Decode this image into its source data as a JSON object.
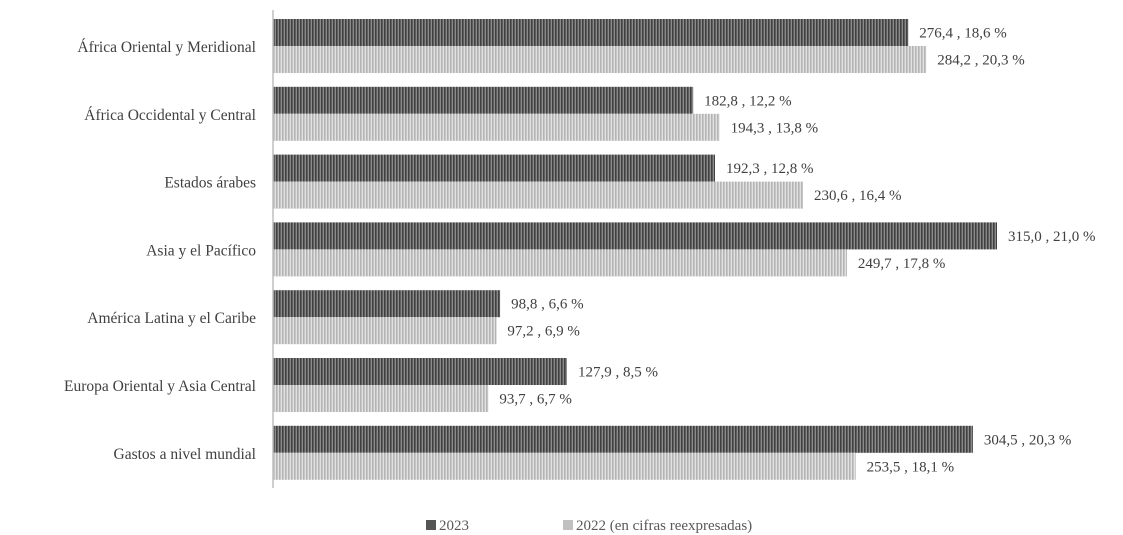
{
  "chart_data": {
    "type": "bar",
    "orientation": "horizontal",
    "categories": [
      "África Oriental y Meridional",
      "África Occidental y Central",
      "Estados árabes",
      "Asia y el Pacífico",
      "América Latina y el Caribe",
      "Europa Oriental y Asia Central",
      "Gastos a nivel mundial"
    ],
    "series": [
      {
        "name": "2023",
        "color": "#6b6b6b",
        "pattern": "vertical-stripes-dark",
        "values": [
          276.4,
          182.8,
          192.3,
          315.0,
          98.8,
          127.9,
          304.5
        ],
        "labels": [
          "276,4 , 18,6 %",
          "182,8 , 12,2 %",
          "192,3 , 12,8 %",
          "315,0 , 21,0 %",
          "98,8 , 6,6 %",
          "127,9 , 8,5 %",
          "304,5 , 20,3 %"
        ]
      },
      {
        "name": "2022 (en cifras reexpresadas)",
        "color": "#c8c8c8",
        "pattern": "vertical-stripes-light",
        "values": [
          284.2,
          194.3,
          230.6,
          249.7,
          97.2,
          93.7,
          253.5
        ],
        "labels": [
          "284,2 , 20,3 %",
          "194,3 , 13,8 %",
          "230,6 , 16,4 %",
          "249,7 , 17,8 %",
          "97,2 , 6,9 %",
          "93,7 , 6,7 %",
          "253,5 , 18,1 %"
        ]
      }
    ],
    "xlim": [
      0,
      315
    ],
    "grid": false,
    "legend_position": "bottom"
  }
}
